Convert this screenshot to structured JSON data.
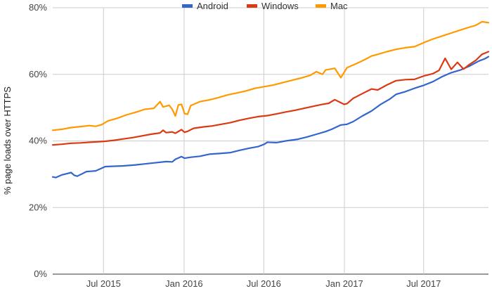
{
  "chart_data": {
    "type": "line",
    "title": "",
    "xlabel": "",
    "ylabel": "% page loads over HTTPS",
    "ylim": [
      0,
      80
    ],
    "y_ticks": [
      {
        "value": 0,
        "label": "0%"
      },
      {
        "value": 20,
        "label": "20%"
      },
      {
        "value": 40,
        "label": "40%"
      },
      {
        "value": 60,
        "label": "60%"
      },
      {
        "value": 80,
        "label": "80%"
      }
    ],
    "x_range": [
      "2015-03-07",
      "2017-11-26"
    ],
    "x_ticks": [
      {
        "date": "2015-07-01",
        "label": "Jul 2015"
      },
      {
        "date": "2016-01-01",
        "label": "Jan 2016"
      },
      {
        "date": "2016-07-01",
        "label": "Jul 2016"
      },
      {
        "date": "2017-01-01",
        "label": "Jan 2017"
      },
      {
        "date": "2017-07-01",
        "label": "Jul 2017"
      }
    ],
    "grid": true,
    "legend_position": "top-center",
    "series": [
      {
        "name": "Android",
        "color": "#3366cc",
        "points": [
          [
            "2015-03-07",
            29.2
          ],
          [
            "2015-03-14",
            29.0
          ],
          [
            "2015-03-28",
            29.8
          ],
          [
            "2015-04-18",
            30.5
          ],
          [
            "2015-04-25",
            29.7
          ],
          [
            "2015-05-02",
            29.4
          ],
          [
            "2015-05-23",
            30.8
          ],
          [
            "2015-06-13",
            31.0
          ],
          [
            "2015-06-27",
            31.8
          ],
          [
            "2015-07-05",
            32.3
          ],
          [
            "2015-08-15",
            32.5
          ],
          [
            "2015-09-12",
            32.8
          ],
          [
            "2015-10-03",
            33.1
          ],
          [
            "2015-10-31",
            33.5
          ],
          [
            "2015-11-21",
            33.8
          ],
          [
            "2015-12-05",
            33.7
          ],
          [
            "2015-12-12",
            34.5
          ],
          [
            "2015-12-26",
            35.3
          ],
          [
            "2016-01-02",
            34.8
          ],
          [
            "2016-01-16",
            35.1
          ],
          [
            "2016-02-06",
            35.4
          ],
          [
            "2016-02-27",
            36.0
          ],
          [
            "2016-03-19",
            36.2
          ],
          [
            "2016-04-16",
            36.5
          ],
          [
            "2016-05-07",
            37.2
          ],
          [
            "2016-05-28",
            37.8
          ],
          [
            "2016-06-18",
            38.3
          ],
          [
            "2016-07-02",
            39.0
          ],
          [
            "2016-07-09",
            39.6
          ],
          [
            "2016-07-30",
            39.5
          ],
          [
            "2016-08-20",
            40.0
          ],
          [
            "2016-09-17",
            40.5
          ],
          [
            "2016-10-08",
            41.2
          ],
          [
            "2016-10-29",
            42.0
          ],
          [
            "2016-11-19",
            42.8
          ],
          [
            "2016-12-03",
            43.5
          ],
          [
            "2016-12-24",
            44.8
          ],
          [
            "2017-01-07",
            45.0
          ],
          [
            "2017-01-21",
            45.8
          ],
          [
            "2017-02-11",
            47.5
          ],
          [
            "2017-03-04",
            49.0
          ],
          [
            "2017-03-25",
            51.0
          ],
          [
            "2017-04-15",
            52.6
          ],
          [
            "2017-04-29",
            54.0
          ],
          [
            "2017-05-20",
            54.8
          ],
          [
            "2017-06-10",
            55.8
          ],
          [
            "2017-07-01",
            56.7
          ],
          [
            "2017-07-22",
            57.8
          ],
          [
            "2017-08-12",
            59.3
          ],
          [
            "2017-09-02",
            60.5
          ],
          [
            "2017-09-23",
            61.3
          ],
          [
            "2017-10-14",
            62.5
          ],
          [
            "2017-11-04",
            64.0
          ],
          [
            "2017-11-18",
            64.7
          ],
          [
            "2017-11-26",
            65.3
          ]
        ]
      },
      {
        "name": "Windows",
        "color": "#dc3912",
        "points": [
          [
            "2015-03-07",
            38.8
          ],
          [
            "2015-03-28",
            39.0
          ],
          [
            "2015-04-18",
            39.3
          ],
          [
            "2015-05-09",
            39.4
          ],
          [
            "2015-05-30",
            39.6
          ],
          [
            "2015-06-13",
            39.7
          ],
          [
            "2015-07-05",
            39.9
          ],
          [
            "2015-07-25",
            40.2
          ],
          [
            "2015-08-15",
            40.6
          ],
          [
            "2015-09-05",
            41.0
          ],
          [
            "2015-09-26",
            41.5
          ],
          [
            "2015-10-17",
            42.0
          ],
          [
            "2015-11-07",
            42.4
          ],
          [
            "2015-11-14",
            43.2
          ],
          [
            "2015-11-21",
            42.5
          ],
          [
            "2015-12-05",
            42.7
          ],
          [
            "2015-12-12",
            42.3
          ],
          [
            "2015-12-26",
            43.4
          ],
          [
            "2016-01-02",
            42.6
          ],
          [
            "2016-01-09",
            42.9
          ],
          [
            "2016-01-23",
            43.8
          ],
          [
            "2016-02-13",
            44.2
          ],
          [
            "2016-03-05",
            44.5
          ],
          [
            "2016-03-26",
            45.0
          ],
          [
            "2016-04-16",
            45.5
          ],
          [
            "2016-05-07",
            46.2
          ],
          [
            "2016-05-28",
            46.8
          ],
          [
            "2016-06-18",
            47.3
          ],
          [
            "2016-07-09",
            47.6
          ],
          [
            "2016-07-30",
            48.1
          ],
          [
            "2016-08-20",
            48.7
          ],
          [
            "2016-09-10",
            49.2
          ],
          [
            "2016-10-01",
            49.8
          ],
          [
            "2016-10-22",
            50.4
          ],
          [
            "2016-11-12",
            51.0
          ],
          [
            "2016-11-26",
            51.3
          ],
          [
            "2016-12-10",
            52.4
          ],
          [
            "2016-12-31",
            51.0
          ],
          [
            "2017-01-07",
            51.2
          ],
          [
            "2017-01-21",
            52.8
          ],
          [
            "2017-02-11",
            54.2
          ],
          [
            "2017-03-04",
            55.6
          ],
          [
            "2017-03-18",
            55.3
          ],
          [
            "2017-04-08",
            56.8
          ],
          [
            "2017-04-29",
            58.1
          ],
          [
            "2017-05-20",
            58.4
          ],
          [
            "2017-06-10",
            58.5
          ],
          [
            "2017-07-01",
            59.5
          ],
          [
            "2017-07-22",
            60.2
          ],
          [
            "2017-08-05",
            61.2
          ],
          [
            "2017-08-19",
            64.8
          ],
          [
            "2017-09-02",
            61.5
          ],
          [
            "2017-09-16",
            63.6
          ],
          [
            "2017-09-30",
            61.6
          ],
          [
            "2017-10-14",
            63.0
          ],
          [
            "2017-10-28",
            64.2
          ],
          [
            "2017-11-11",
            66.0
          ],
          [
            "2017-11-26",
            66.8
          ]
        ]
      },
      {
        "name": "Mac",
        "color": "#ff9900",
        "points": [
          [
            "2015-03-07",
            43.2
          ],
          [
            "2015-03-28",
            43.5
          ],
          [
            "2015-04-18",
            44.0
          ],
          [
            "2015-05-09",
            44.3
          ],
          [
            "2015-05-30",
            44.6
          ],
          [
            "2015-06-13",
            44.4
          ],
          [
            "2015-06-27",
            44.9
          ],
          [
            "2015-07-11",
            46.0
          ],
          [
            "2015-08-01",
            46.8
          ],
          [
            "2015-08-22",
            47.8
          ],
          [
            "2015-09-12",
            48.6
          ],
          [
            "2015-10-03",
            49.5
          ],
          [
            "2015-10-24",
            49.8
          ],
          [
            "2015-11-07",
            51.8
          ],
          [
            "2015-11-14",
            50.2
          ],
          [
            "2015-11-28",
            50.7
          ],
          [
            "2015-12-05",
            49.5
          ],
          [
            "2015-12-12",
            47.5
          ],
          [
            "2015-12-19",
            50.8
          ],
          [
            "2015-12-26",
            51.0
          ],
          [
            "2016-01-02",
            48.2
          ],
          [
            "2016-01-09",
            48.0
          ],
          [
            "2016-01-16",
            50.6
          ],
          [
            "2016-02-06",
            51.8
          ],
          [
            "2016-02-27",
            52.3
          ],
          [
            "2016-03-19",
            53.0
          ],
          [
            "2016-04-09",
            53.8
          ],
          [
            "2016-04-30",
            54.4
          ],
          [
            "2016-05-21",
            55.0
          ],
          [
            "2016-06-11",
            55.8
          ],
          [
            "2016-07-02",
            56.3
          ],
          [
            "2016-07-23",
            56.8
          ],
          [
            "2016-08-13",
            57.5
          ],
          [
            "2016-09-03",
            58.2
          ],
          [
            "2016-09-24",
            58.9
          ],
          [
            "2016-10-15",
            59.7
          ],
          [
            "2016-10-29",
            60.8
          ],
          [
            "2016-11-12",
            60.0
          ],
          [
            "2016-11-19",
            61.3
          ],
          [
            "2016-12-10",
            61.8
          ],
          [
            "2016-12-24",
            59.0
          ],
          [
            "2017-01-07",
            62.0
          ],
          [
            "2017-01-28",
            63.2
          ],
          [
            "2017-02-18",
            64.5
          ],
          [
            "2017-03-04",
            65.5
          ],
          [
            "2017-03-18",
            66.0
          ],
          [
            "2017-04-08",
            66.8
          ],
          [
            "2017-04-29",
            67.5
          ],
          [
            "2017-05-20",
            68.0
          ],
          [
            "2017-06-10",
            68.3
          ],
          [
            "2017-07-01",
            69.5
          ],
          [
            "2017-07-22",
            70.6
          ],
          [
            "2017-08-12",
            71.5
          ],
          [
            "2017-09-02",
            72.4
          ],
          [
            "2017-09-23",
            73.3
          ],
          [
            "2017-10-14",
            74.2
          ],
          [
            "2017-10-28",
            74.7
          ],
          [
            "2017-11-11",
            75.8
          ],
          [
            "2017-11-26",
            75.5
          ]
        ]
      }
    ]
  }
}
